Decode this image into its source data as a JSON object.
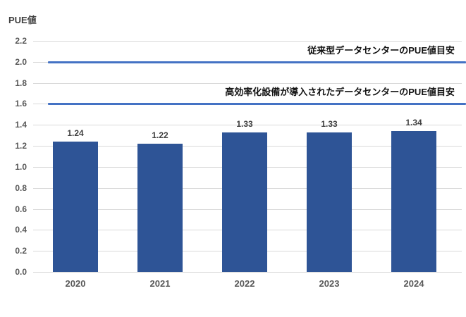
{
  "chart_data": {
    "type": "bar",
    "title": "PUE値",
    "categories": [
      "2020",
      "2021",
      "2022",
      "2023",
      "2024"
    ],
    "values": [
      1.24,
      1.22,
      1.33,
      1.33,
      1.34
    ],
    "value_labels": [
      "1.24",
      "1.22",
      "1.33",
      "1.33",
      "1.34"
    ],
    "xlabel": "",
    "ylabel": "PUE値",
    "ylim": [
      0,
      2.2
    ],
    "y_tick_step": 0.2,
    "y_ticks": [
      "0.0",
      "0.2",
      "0.4",
      "0.6",
      "0.8",
      "1.0",
      "1.2",
      "1.4",
      "1.6",
      "1.8",
      "2.0",
      "2.2"
    ],
    "grid": true,
    "legend": "none",
    "colors": {
      "bar": "#2E5496",
      "reference_line": "#4472C4",
      "gridline": "#D9D9D9",
      "tick_text": "#595959",
      "data_label_text": "#404040",
      "annotation_text": "#111111"
    },
    "reference_lines": [
      {
        "value": 2.0,
        "label": "従来型データセンターのPUE値目安"
      },
      {
        "value": 1.6,
        "label": "高効率化設備が導入されたデータセンターのPUE値目安"
      }
    ]
  }
}
